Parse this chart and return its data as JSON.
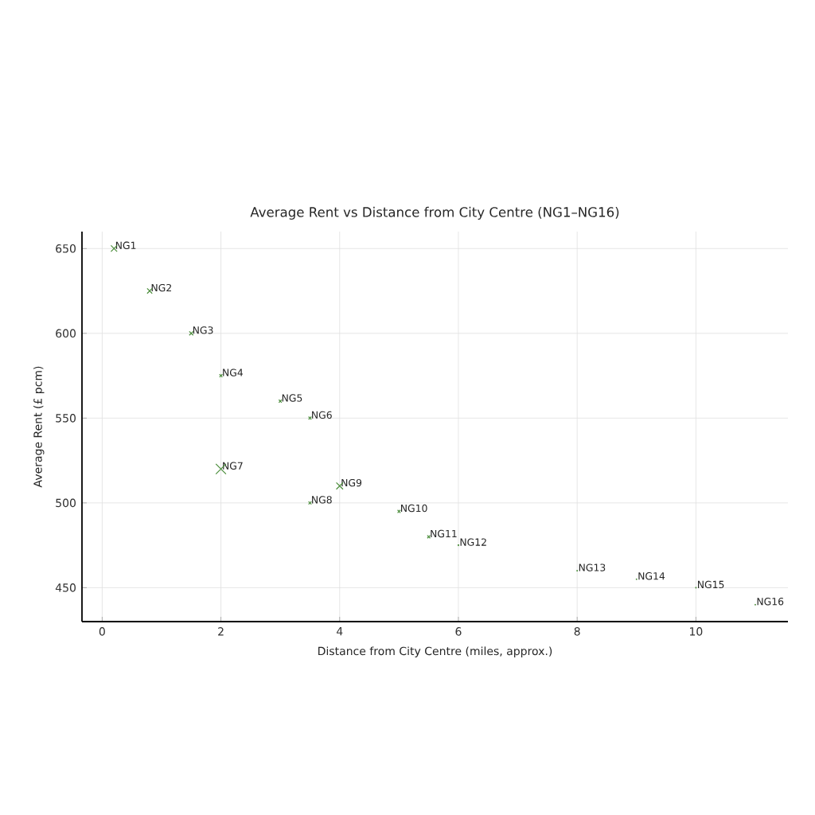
{
  "chart_data": {
    "type": "bubble",
    "title": "Average Rent vs Distance from City Centre (NG1–NG16)",
    "xlabel": "Distance from City Centre (miles, approx.)",
    "ylabel": "Average Rent (£ pcm)",
    "x": [
      0.2,
      0.8,
      1.5,
      2.0,
      3.0,
      3.5,
      2.0,
      3.5,
      4.0,
      5.0,
      5.5,
      6.0,
      8.0,
      9.0,
      10.0,
      11.0
    ],
    "series": [
      {
        "color": "#4a8c3a",
        "values": [
          650,
          625,
          600,
          575,
          560,
          550,
          520,
          500,
          510,
          495,
          480,
          475,
          460,
          455,
          450,
          440
        ],
        "sizes": [
          0.37,
          0.25,
          0.15,
          0.08,
          0.08,
          0.08,
          1,
          0.08,
          0.44,
          0.08,
          0.08,
          0.01,
          0.01,
          0.01,
          0.01,
          0.01
        ]
      }
    ],
    "annotations": [
      {
        "text": "NG1",
        "x": 0.2,
        "y": 650
      },
      {
        "text": "NG2",
        "x": 0.8,
        "y": 625
      },
      {
        "text": "NG3",
        "x": 1.5,
        "y": 600
      },
      {
        "text": "NG4",
        "x": 2.0,
        "y": 575
      },
      {
        "text": "NG5",
        "x": 3.0,
        "y": 560
      },
      {
        "text": "NG6",
        "x": 3.5,
        "y": 550
      },
      {
        "text": "NG7",
        "x": 2.0,
        "y": 520
      },
      {
        "text": "NG8",
        "x": 3.5,
        "y": 500
      },
      {
        "text": "NG9",
        "x": 4.0,
        "y": 510
      },
      {
        "text": "NG10",
        "x": 5.0,
        "y": 495
      },
      {
        "text": "NG11",
        "x": 5.5,
        "y": 480
      },
      {
        "text": "NG12",
        "x": 6.0,
        "y": 475
      },
      {
        "text": "NG13",
        "x": 8.0,
        "y": 460
      },
      {
        "text": "NG14",
        "x": 9.0,
        "y": 455
      },
      {
        "text": "NG15",
        "x": 10.0,
        "y": 450
      },
      {
        "text": "NG16",
        "x": 11.0,
        "y": 440
      }
    ],
    "xlim": [
      -0.34,
      11.55
    ],
    "ylim": [
      430,
      660
    ],
    "xticks": [
      0,
      2,
      4,
      6,
      8,
      10
    ],
    "yticks": [
      450,
      500,
      550,
      600,
      650
    ],
    "grid": true,
    "marker": "cross"
  }
}
